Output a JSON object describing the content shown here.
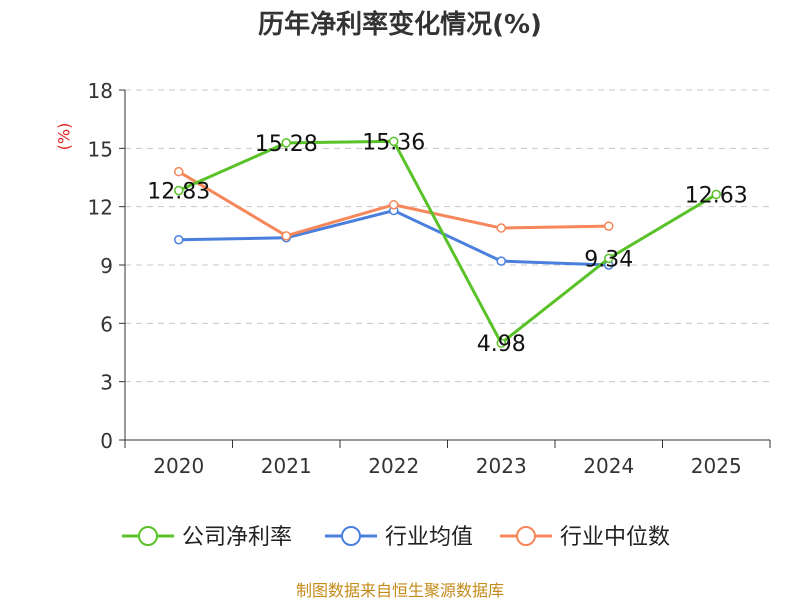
{
  "chart_data": {
    "type": "line",
    "title": "历年净利率变化情况(%)",
    "ylabel": "(%)",
    "xlabel": "",
    "categories": [
      "2020",
      "2021",
      "2022",
      "2023",
      "2024",
      "2025"
    ],
    "ylim": [
      0,
      18
    ],
    "yticks": [
      0,
      3,
      6,
      9,
      12,
      15,
      18
    ],
    "ytick_labels": [
      "0",
      "3",
      "6",
      "9",
      "12",
      "15",
      "18"
    ],
    "grid": true,
    "legend_position": "bottom",
    "series": [
      {
        "name": "公司净利率",
        "color": "#5ac229",
        "values": [
          12.83,
          15.28,
          15.36,
          4.98,
          9.34,
          12.63
        ],
        "labels": [
          "12.83",
          "15.28",
          "15.36",
          "4.98",
          "9.34",
          "12.63"
        ]
      },
      {
        "name": "行业均值",
        "color": "#4a7fdd",
        "values": [
          10.3,
          10.4,
          11.8,
          9.2,
          9.0,
          null
        ]
      },
      {
        "name": "行业中位数",
        "color": "#f5875a",
        "values": [
          13.8,
          10.5,
          12.1,
          10.9,
          11.0,
          null
        ]
      }
    ]
  },
  "footer": {
    "source": "制图数据来自恒生聚源数据库"
  }
}
